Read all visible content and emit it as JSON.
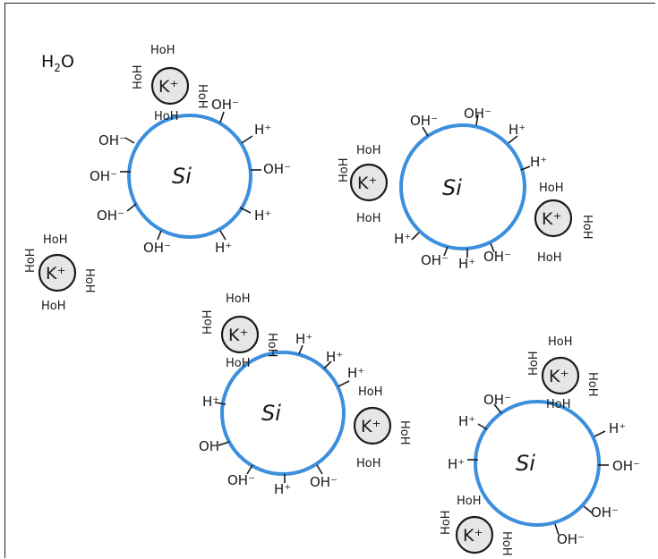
{
  "title_label": {
    "main": "H",
    "sub": "2",
    "tail": "O"
  },
  "colors": {
    "particle": "#3b8fdc",
    "ion_fill": "#e6e6e6",
    "ink": "#1a1a1a"
  },
  "glyphs": {
    "particle": "Si",
    "ion": "K⁺",
    "water": "HoH",
    "hydroxide": "OH⁻",
    "proton": "H⁺"
  }
}
